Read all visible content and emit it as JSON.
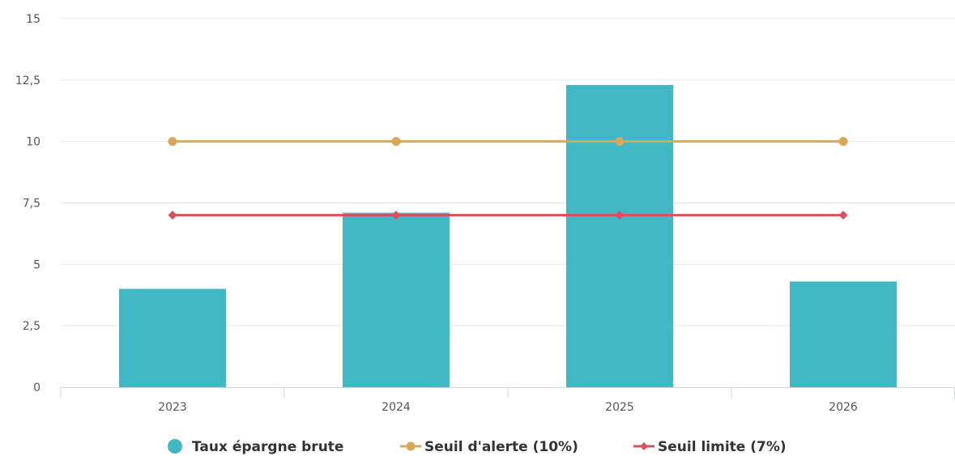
{
  "chart_data": {
    "type": "bar",
    "categories": [
      "2023",
      "2024",
      "2025",
      "2026"
    ],
    "ylim": [
      0,
      15
    ],
    "yticks": [
      0,
      2.5,
      5,
      7.5,
      10,
      12.5,
      15
    ],
    "ytick_labels": [
      "0",
      "2,5",
      "5",
      "7,5",
      "10",
      "12,5",
      "15"
    ],
    "grid": true,
    "legend_position": "bottom-center",
    "series": [
      {
        "name": "Taux épargne brute",
        "kind": "bar",
        "color": "#41b8c3",
        "marker": "circle",
        "values": [
          4.0,
          7.1,
          12.3,
          4.3
        ]
      },
      {
        "name": "Seuil d'alerte (10%)",
        "kind": "line",
        "color": "#d8a85a",
        "marker": "circle",
        "values": [
          10,
          10,
          10,
          10
        ]
      },
      {
        "name": "Seuil limite (7%)",
        "kind": "line",
        "color": "#d9505c",
        "marker": "diamond",
        "values": [
          7,
          7,
          7,
          7
        ]
      }
    ]
  }
}
